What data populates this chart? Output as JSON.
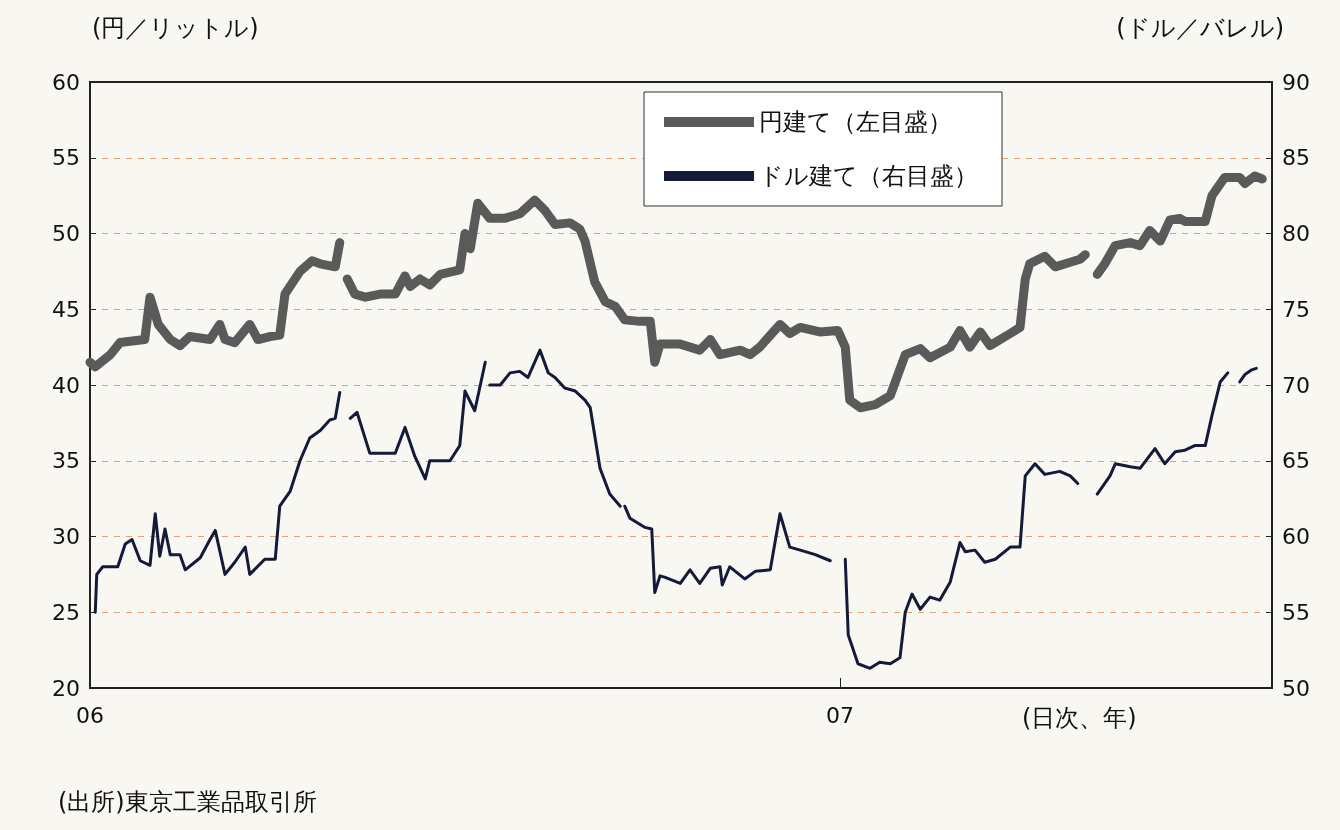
{
  "chart_data": {
    "type": "line",
    "xlabel": "(日次、年)",
    "ylabel": "(円／リットル)",
    "y2label": "(ドル／バレル)",
    "annotations": [
      "(出所)東京工業品取引所"
    ],
    "xlim": [
      2006,
      2007.576
    ],
    "xticks": [
      {
        "value": 2006,
        "label": "06"
      },
      {
        "value": 2007,
        "label": "07"
      }
    ],
    "ylim": [
      20,
      60
    ],
    "yticks": [
      20,
      25,
      30,
      35,
      40,
      45,
      50,
      55,
      60
    ],
    "y2lim": [
      50,
      90
    ],
    "y2ticks": [
      50,
      55,
      60,
      65,
      70,
      75,
      80,
      85,
      90
    ],
    "grid": "y",
    "legend": "top right",
    "marker": "none",
    "line_style": "solid",
    "series": [
      {
        "name": "円建て（左目盛）",
        "color": "#5a5a5a",
        "x": [
          2006.0,
          2006.007,
          2006.027,
          2006.04,
          2006.073,
          2006.08,
          2006.091,
          2006.107,
          2006.12,
          2006.133,
          2006.16,
          2006.173,
          2006.18,
          2006.193,
          2006.213,
          2006.224,
          2006.24,
          2006.253,
          2006.26,
          2006.28,
          2006.296,
          2006.307,
          2006.327,
          2006.333,
          2006.337,
          2006.343,
          2006.353,
          2006.367,
          2006.387,
          2006.407,
          2006.42,
          2006.427,
          2006.44,
          2006.453,
          2006.467,
          2006.493,
          2006.5,
          2006.507,
          2006.517,
          2006.533,
          2006.553,
          2006.573,
          2006.593,
          2006.607,
          2006.62,
          2006.64,
          2006.653,
          2006.66,
          2006.673,
          2006.687,
          2006.7,
          2006.713,
          2006.733,
          2006.747,
          2006.753,
          2006.76,
          2006.787,
          2006.813,
          2006.827,
          2006.84,
          2006.867,
          2006.88,
          2006.893,
          2006.92,
          2006.933,
          2006.947,
          2006.973,
          2006.997,
          2007.007,
          2007.013,
          2007.027,
          2007.047,
          2007.067,
          2007.087,
          2007.107,
          2007.12,
          2007.147,
          2007.16,
          2007.173,
          2007.187,
          2007.2,
          2007.227,
          2007.24,
          2007.247,
          2007.253,
          2007.273,
          2007.287,
          2007.307,
          2007.32,
          2007.327,
          2007.335,
          2007.343,
          2007.353,
          2007.367,
          2007.387,
          2007.4,
          2007.413,
          2007.427,
          2007.44,
          2007.453,
          2007.46,
          2007.487,
          2007.496,
          2007.513,
          2007.533,
          2007.54,
          2007.553,
          2007.563
        ],
        "values": [
          41.5,
          41.2,
          42,
          42.8,
          43,
          45.8,
          44,
          43,
          42.6,
          43.2,
          43,
          44,
          43,
          42.8,
          44,
          43,
          43.2,
          43.3,
          46,
          47.5,
          48.2,
          48,
          47.8,
          49.4,
          null,
          47,
          46,
          45.8,
          46,
          46,
          47.2,
          46.5,
          47,
          46.6,
          47.3,
          47.6,
          50,
          49,
          52,
          51,
          51,
          51.3,
          52.2,
          51.5,
          50.6,
          50.7,
          50.3,
          49.5,
          46.8,
          45.5,
          45.2,
          44.3,
          44.2,
          44.2,
          41.5,
          42.7,
          42.7,
          42.3,
          43,
          42,
          42.3,
          42,
          42.5,
          44,
          43.4,
          43.8,
          43.5,
          43.6,
          42.5,
          39,
          38.5,
          38.7,
          39.3,
          42,
          42.4,
          41.8,
          42.5,
          43.6,
          42.5,
          43.5,
          42.6,
          43.4,
          43.8,
          47,
          48,
          48.5,
          47.8,
          48.1,
          48.3,
          48.6,
          null,
          47.3,
          48,
          49.2,
          49.4,
          49.2,
          50.2,
          49.5,
          50.9,
          51,
          50.8,
          50.8,
          52.5,
          53.7,
          53.7,
          53.3,
          53.8,
          53.6
        ]
      },
      {
        "name": "ドル建て（右目盛）",
        "color": "#141a3a",
        "axis": "y2",
        "x": [
          2006.007,
          2006.009,
          2006.017,
          2006.037,
          2006.047,
          2006.056,
          2006.067,
          2006.08,
          2006.087,
          2006.093,
          2006.1,
          2006.107,
          2006.12,
          2006.127,
          2006.147,
          2006.16,
          2006.167,
          2006.18,
          2006.193,
          2006.207,
          2006.213,
          2006.233,
          2006.247,
          2006.253,
          2006.267,
          2006.28,
          2006.293,
          2006.307,
          2006.32,
          2006.327,
          2006.333,
          2006.339,
          2006.347,
          2006.356,
          2006.373,
          2006.393,
          2006.407,
          2006.42,
          2006.433,
          2006.447,
          2006.453,
          2006.48,
          2006.493,
          2006.5,
          2006.513,
          2006.527,
          2006.53,
          2006.533,
          2006.547,
          2006.56,
          2006.573,
          2006.584,
          2006.6,
          2006.611,
          2006.62,
          2006.633,
          2006.647,
          2006.66,
          2006.667,
          2006.68,
          2006.693,
          2006.707,
          2006.71,
          2006.713,
          2006.72,
          2006.74,
          2006.749,
          2006.753,
          2006.76,
          2006.767,
          2006.787,
          2006.8,
          2006.813,
          2006.827,
          2006.84,
          2006.843,
          2006.853,
          2006.873,
          2006.887,
          2006.907,
          2006.92,
          2006.933,
          2006.947,
          2006.967,
          2006.987,
          2006.993,
          2007.007,
          2007.011,
          2007.024,
          2007.04,
          2007.053,
          2007.067,
          2007.08,
          2007.087,
          2007.096,
          2007.107,
          2007.12,
          2007.133,
          2007.147,
          2007.16,
          2007.167,
          2007.18,
          2007.193,
          2007.207,
          2007.227,
          2007.24,
          2007.247,
          2007.26,
          2007.273,
          2007.293,
          2007.307,
          2007.317,
          2007.325,
          2007.343,
          2007.36,
          2007.367,
          2007.387,
          2007.4,
          2007.42,
          2007.433,
          2007.447,
          2007.46,
          2007.473,
          2007.487,
          2007.496,
          2007.507,
          2007.517,
          2007.525,
          2007.533,
          2007.54,
          2007.549,
          2007.555
        ],
        "values": [
          55,
          57.5,
          58,
          58,
          59.5,
          59.8,
          58.4,
          58.1,
          61.5,
          58.7,
          60.5,
          58.8,
          58.8,
          57.8,
          58.6,
          59.8,
          60.4,
          57.5,
          58.3,
          59.3,
          57.5,
          58.5,
          58.5,
          62,
          63,
          65,
          66.5,
          67,
          67.7,
          67.8,
          69.5,
          null,
          67.8,
          68.2,
          65.5,
          65.5,
          65.5,
          67.2,
          65.3,
          63.8,
          65,
          65,
          66,
          69.6,
          68.3,
          71.5,
          null,
          70,
          70,
          70.8,
          70.9,
          70.5,
          72.3,
          70.8,
          70.5,
          69.8,
          69.6,
          69,
          68.5,
          64.5,
          62.8,
          62,
          null,
          62,
          61.2,
          60.6,
          60.5,
          56.3,
          57.4,
          57.3,
          56.9,
          57.8,
          56.9,
          57.9,
          58,
          56.8,
          58,
          57.2,
          57.7,
          57.8,
          61.5,
          59.3,
          59.1,
          58.8,
          58.4,
          null,
          58.5,
          53.5,
          51.6,
          51.3,
          51.7,
          51.6,
          52,
          55,
          56.2,
          55.2,
          56,
          55.8,
          57,
          59.6,
          59,
          59.1,
          58.3,
          58.5,
          59.3,
          59.3,
          64,
          64.8,
          64.1,
          64.3,
          64,
          63.5,
          null,
          62.8,
          64,
          64.8,
          64.6,
          64.5,
          65.8,
          64.8,
          65.6,
          65.7,
          66,
          66,
          68,
          70.2,
          70.8,
          null,
          70.2,
          70.7,
          71,
          71.1
        ]
      }
    ]
  }
}
